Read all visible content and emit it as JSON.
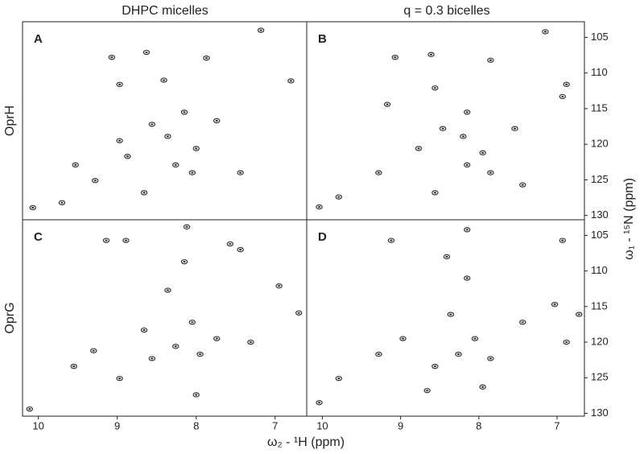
{
  "figure": {
    "columns": [
      "DHPC micelles",
      "q = 0.3 bicelles"
    ],
    "rows": [
      "OprH",
      "OprG"
    ],
    "x_label": "ω₂ - ¹H (ppm)",
    "y_label": "ω₁ - ¹⁵N (ppm)"
  },
  "chart_data": [
    {
      "type": "scatter",
      "label": "A",
      "color": "#333333",
      "xlim": [
        10.2,
        6.6
      ],
      "ylim": [
        102.8,
        130.6
      ],
      "x": [
        7.18,
        9.07,
        8.63,
        7.87,
        6.8,
        8.97,
        8.41,
        8.15,
        8.56,
        8.36,
        8.0,
        8.87,
        8.26,
        8.05,
        9.53,
        9.28,
        9.7,
        10.07,
        8.66,
        7.44,
        7.74,
        8.97
      ],
      "values": [
        104.0,
        107.8,
        107.1,
        107.9,
        111.1,
        111.6,
        111.0,
        115.5,
        117.2,
        118.9,
        120.6,
        121.7,
        122.9,
        124.0,
        122.9,
        125.1,
        128.2,
        128.9,
        126.8,
        124.0,
        116.7,
        119.5
      ]
    },
    {
      "type": "scatter",
      "label": "B",
      "color": "#333333",
      "xlim": [
        10.2,
        6.65
      ],
      "ylim": [
        102.8,
        130.6
      ],
      "yticks": [
        105,
        110,
        115,
        120,
        125,
        130
      ],
      "x": [
        7.15,
        9.07,
        8.61,
        7.85,
        6.88,
        6.93,
        8.56,
        8.15,
        8.46,
        8.2,
        7.95,
        8.77,
        8.15,
        7.85,
        9.28,
        9.79,
        10.04,
        8.56,
        7.44,
        7.54,
        9.17
      ],
      "values": [
        104.2,
        107.8,
        107.4,
        108.2,
        111.6,
        113.3,
        112.1,
        115.5,
        117.8,
        118.9,
        121.2,
        120.6,
        122.9,
        124.0,
        124.0,
        127.4,
        128.8,
        126.8,
        125.7,
        117.8,
        114.4
      ]
    },
    {
      "type": "scatter",
      "label": "C",
      "color": "#333333",
      "xlim": [
        10.2,
        6.6
      ],
      "ylim": [
        102.8,
        130.4
      ],
      "xticks": [
        10,
        9,
        8,
        7
      ],
      "x": [
        8.12,
        9.14,
        8.89,
        7.57,
        8.15,
        6.95,
        6.7,
        8.36,
        8.05,
        8.26,
        7.95,
        8.56,
        7.74,
        9.3,
        9.55,
        8.97,
        8.0,
        10.11,
        7.31,
        8.66,
        7.44
      ],
      "values": [
        103.8,
        105.7,
        105.7,
        106.2,
        108.7,
        112.1,
        115.9,
        112.7,
        117.2,
        120.6,
        121.7,
        122.3,
        119.5,
        121.2,
        123.4,
        125.1,
        127.4,
        129.4,
        120.0,
        118.3,
        107.0
      ]
    },
    {
      "type": "scatter",
      "label": "D",
      "color": "#333333",
      "xlim": [
        10.2,
        6.65
      ],
      "ylim": [
        102.8,
        130.4
      ],
      "xticks": [
        10,
        9,
        8,
        7
      ],
      "yticks": [
        105,
        110,
        115,
        120,
        125,
        130
      ],
      "x": [
        8.15,
        9.12,
        8.41,
        6.93,
        8.15,
        7.03,
        6.72,
        8.36,
        8.05,
        8.26,
        7.85,
        8.56,
        9.28,
        9.79,
        10.04,
        8.66,
        7.95,
        7.44,
        8.97,
        6.88
      ],
      "values": [
        104.2,
        105.7,
        108.0,
        105.7,
        111.0,
        114.7,
        116.1,
        116.1,
        119.5,
        121.7,
        122.3,
        123.4,
        121.7,
        125.1,
        128.5,
        126.8,
        126.3,
        117.2,
        119.5,
        120.0
      ]
    }
  ]
}
